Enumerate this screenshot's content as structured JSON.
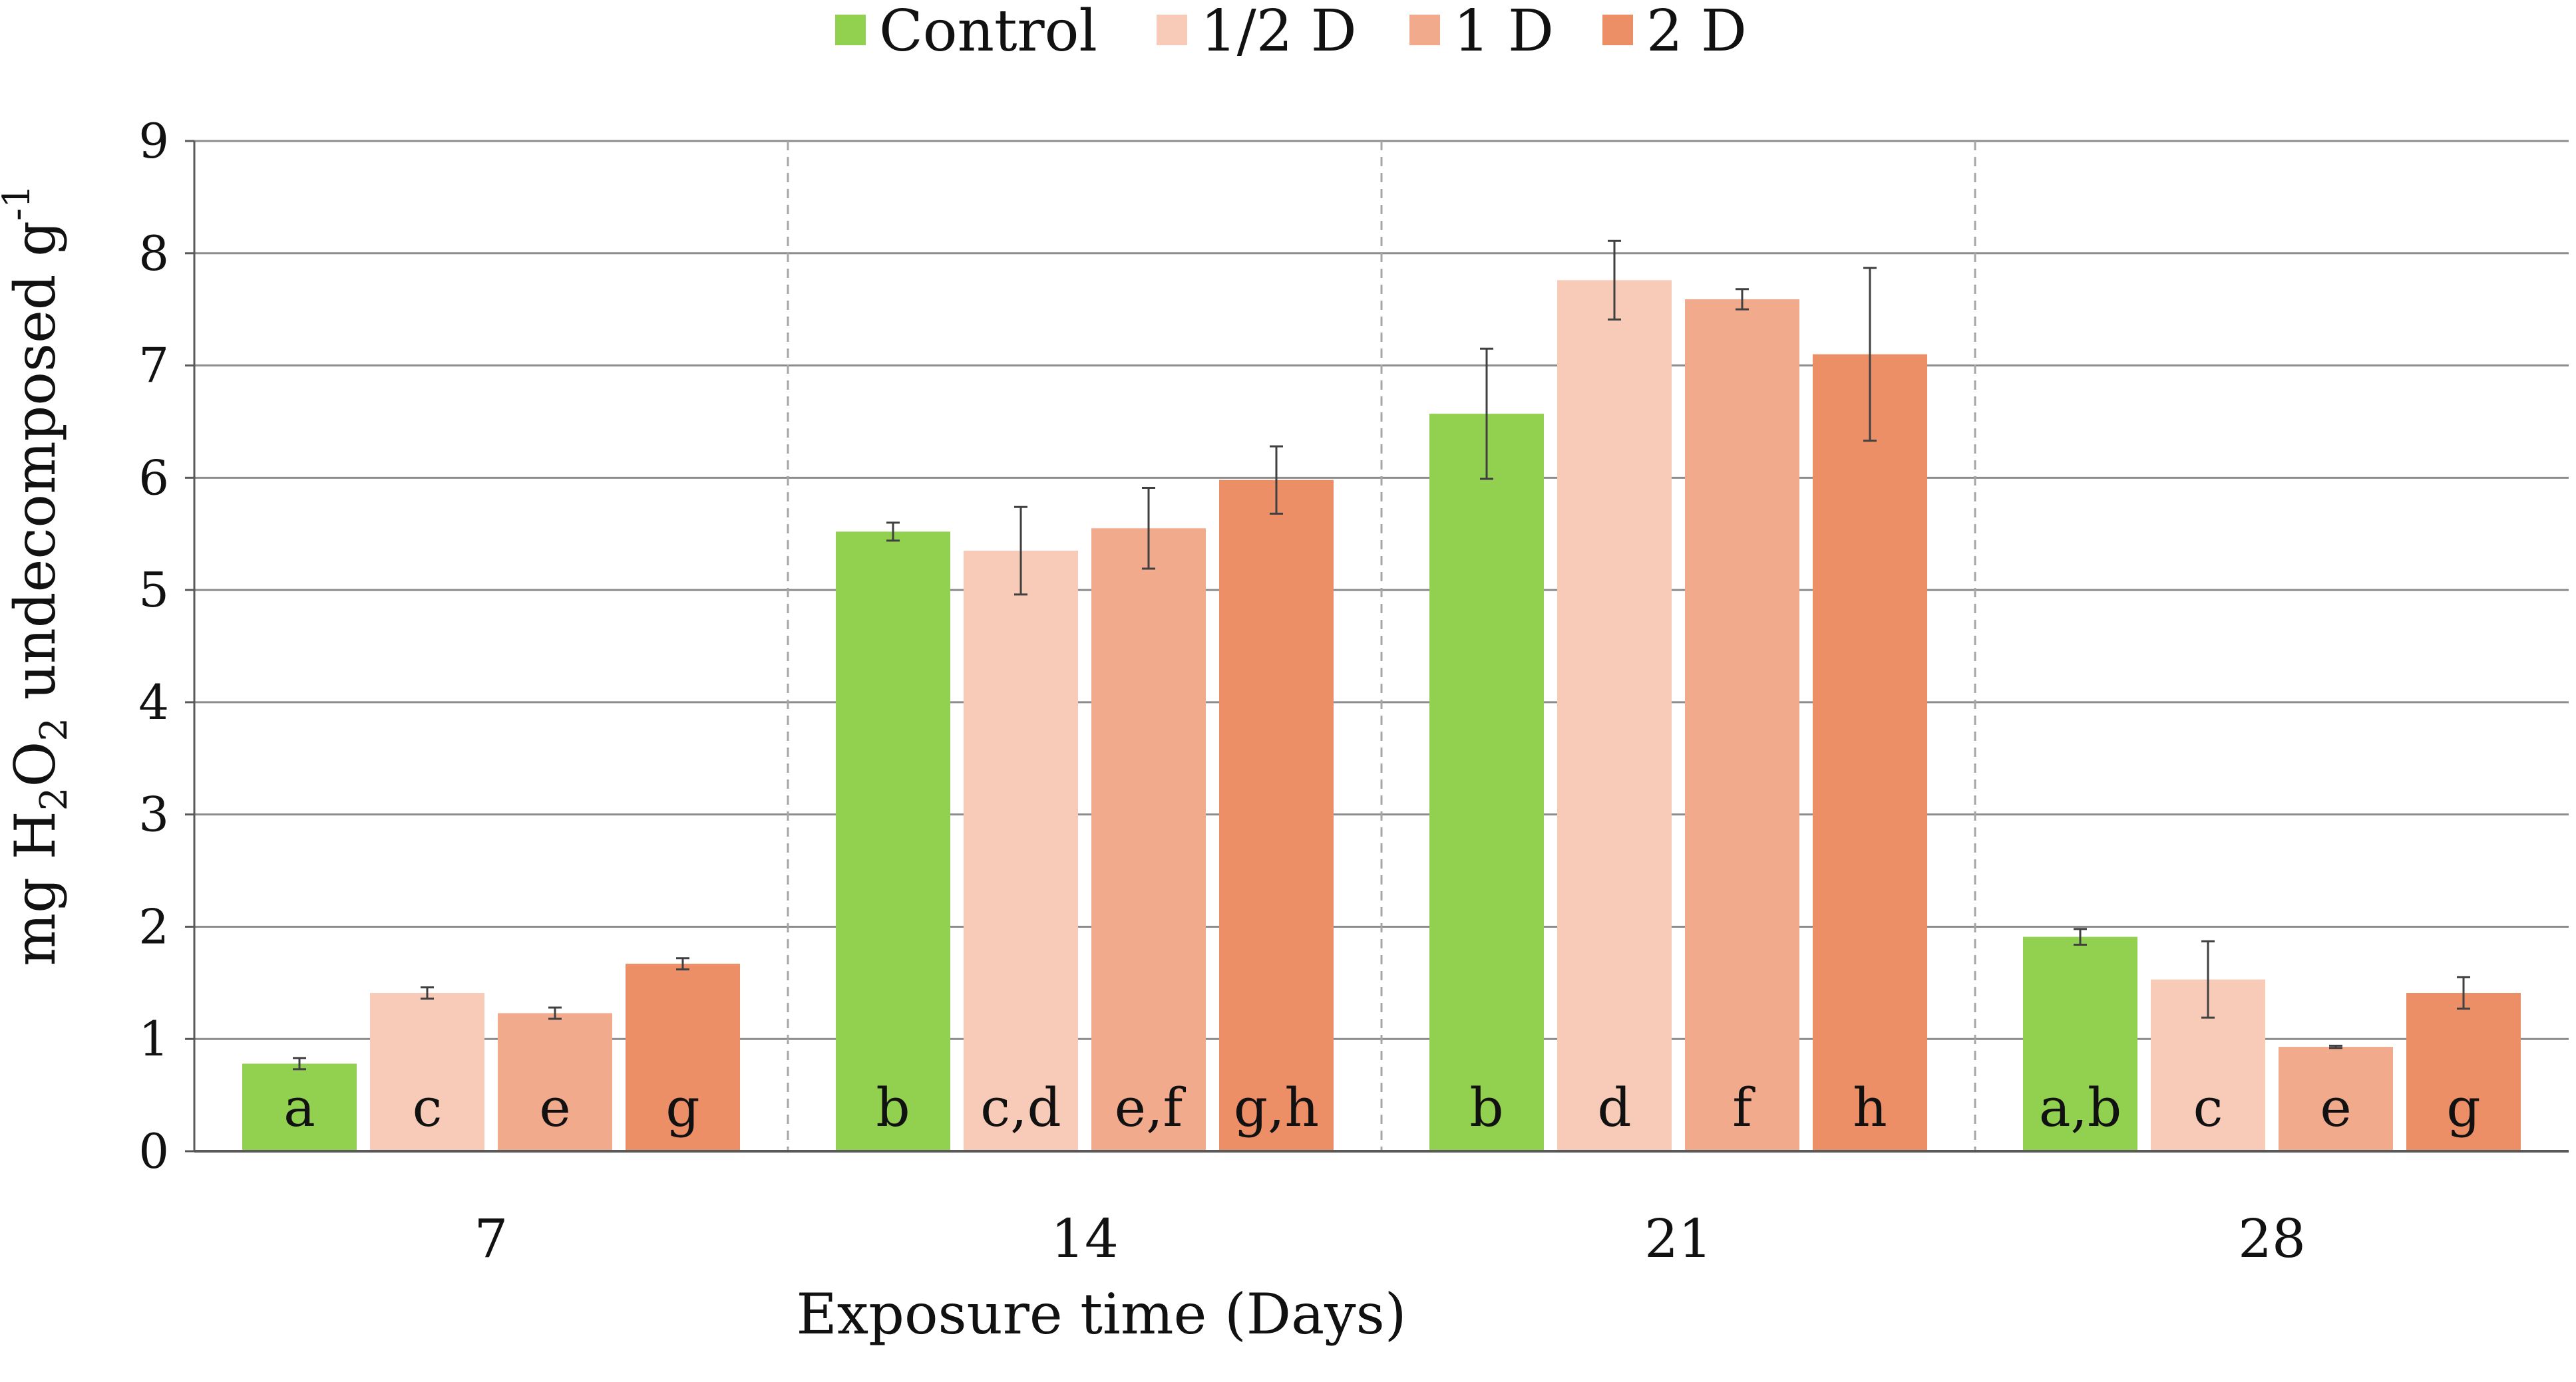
{
  "chart_data": {
    "type": "bar",
    "title": "",
    "xlabel": "Exposure time (Days)",
    "ylabel": {
      "prefix": "mg H",
      "sub1": "2",
      "mid": "O",
      "sub2": "2",
      "suffix": " undecomposed g",
      "sup": "-1"
    },
    "ylim": [
      0,
      9
    ],
    "yticks": [
      0,
      1,
      2,
      3,
      4,
      5,
      6,
      7,
      8,
      9
    ],
    "categories": [
      "7",
      "14",
      "21",
      "28"
    ],
    "legend_position": "top-center",
    "series": [
      {
        "name": "Control",
        "color": "#92d050",
        "values": [
          0.78,
          5.52,
          6.57,
          1.91
        ],
        "errors": [
          0.05,
          0.08,
          0.58,
          0.07
        ],
        "letters": [
          "a",
          "b",
          "b",
          "a,b"
        ]
      },
      {
        "name": "1/2 D",
        "color": "#f8cbb8",
        "values": [
          1.41,
          5.35,
          7.76,
          1.53
        ],
        "errors": [
          0.05,
          0.39,
          0.35,
          0.34
        ],
        "letters": [
          "c",
          "c,d",
          "d",
          "c"
        ]
      },
      {
        "name": "1 D",
        "color": "#f1aa8c",
        "values": [
          1.23,
          5.55,
          7.59,
          0.93
        ],
        "errors": [
          0.05,
          0.36,
          0.09,
          0.01
        ],
        "letters": [
          "e",
          "e,f",
          "f",
          "e"
        ]
      },
      {
        "name": "2 D",
        "color": "#ec8f66",
        "values": [
          1.67,
          5.98,
          7.1,
          1.41
        ],
        "errors": [
          0.05,
          0.3,
          0.77,
          0.14
        ],
        "letters": [
          "g",
          "g,h",
          "h",
          "g"
        ]
      }
    ]
  }
}
